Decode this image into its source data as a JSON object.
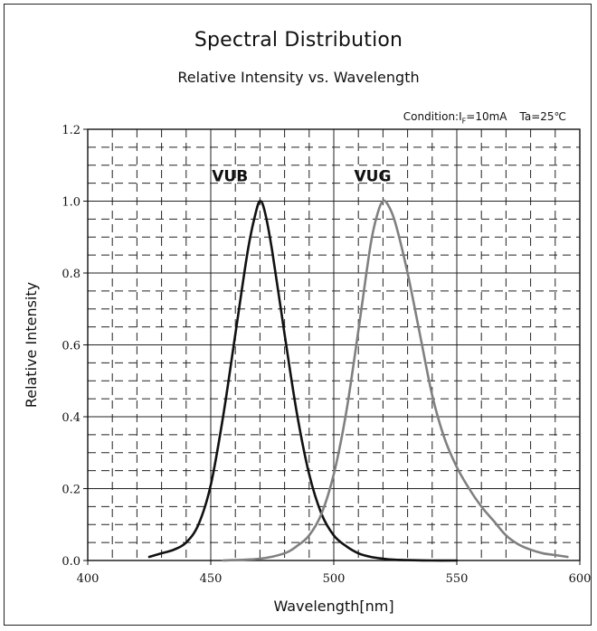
{
  "chart_data": {
    "type": "line",
    "title": "Spectral Distribution",
    "subtitle": "Relative Intensity vs. Wavelength",
    "condition": {
      "prefix": "Condition:I",
      "subscript": "F",
      "current": "=10mA",
      "temperature": "Ta=25℃"
    },
    "xlabel": "Wavelength[nm]",
    "ylabel": "Relative Intensity",
    "xlim": [
      400,
      600
    ],
    "ylim": [
      0,
      1.2
    ],
    "x_ticks": [
      400,
      450,
      500,
      550,
      600
    ],
    "x_tick_labels": [
      "400",
      "450",
      "500",
      "550",
      "600"
    ],
    "y_ticks": [
      0,
      0.2,
      0.4,
      0.6,
      0.8,
      1.0,
      1.2
    ],
    "y_tick_labels": [
      "0.0",
      "0.2",
      "0.4",
      "0.6",
      "0.8",
      "1.0",
      "1.2"
    ],
    "grid": true,
    "series": [
      {
        "name": "VUB",
        "color": "#111111",
        "x": [
          425,
          430,
          435,
          440,
          445,
          450,
          455,
          460,
          465,
          468,
          470,
          472,
          475,
          480,
          485,
          490,
          495,
          500,
          505,
          510,
          515,
          520,
          525,
          530,
          540,
          550
        ],
        "y": [
          0.01,
          0.02,
          0.03,
          0.05,
          0.1,
          0.21,
          0.4,
          0.63,
          0.86,
          0.96,
          1.0,
          0.97,
          0.86,
          0.63,
          0.41,
          0.24,
          0.13,
          0.07,
          0.04,
          0.02,
          0.01,
          0.005,
          0.002,
          0.001,
          0.0,
          0.0
        ]
      },
      {
        "name": "VUG",
        "color": "#808080",
        "x": [
          455,
          470,
          480,
          485,
          490,
          495,
          500,
          505,
          510,
          515,
          518,
          520,
          522,
          525,
          530,
          535,
          540,
          545,
          550,
          555,
          560,
          565,
          570,
          575,
          580,
          585,
          590,
          595
        ],
        "y": [
          0.0,
          0.005,
          0.02,
          0.04,
          0.07,
          0.13,
          0.24,
          0.41,
          0.64,
          0.88,
          0.97,
          1.0,
          0.99,
          0.94,
          0.8,
          0.63,
          0.46,
          0.34,
          0.26,
          0.2,
          0.15,
          0.11,
          0.07,
          0.045,
          0.03,
          0.02,
          0.015,
          0.01
        ]
      }
    ],
    "legend": "inline labels near peaks"
  }
}
